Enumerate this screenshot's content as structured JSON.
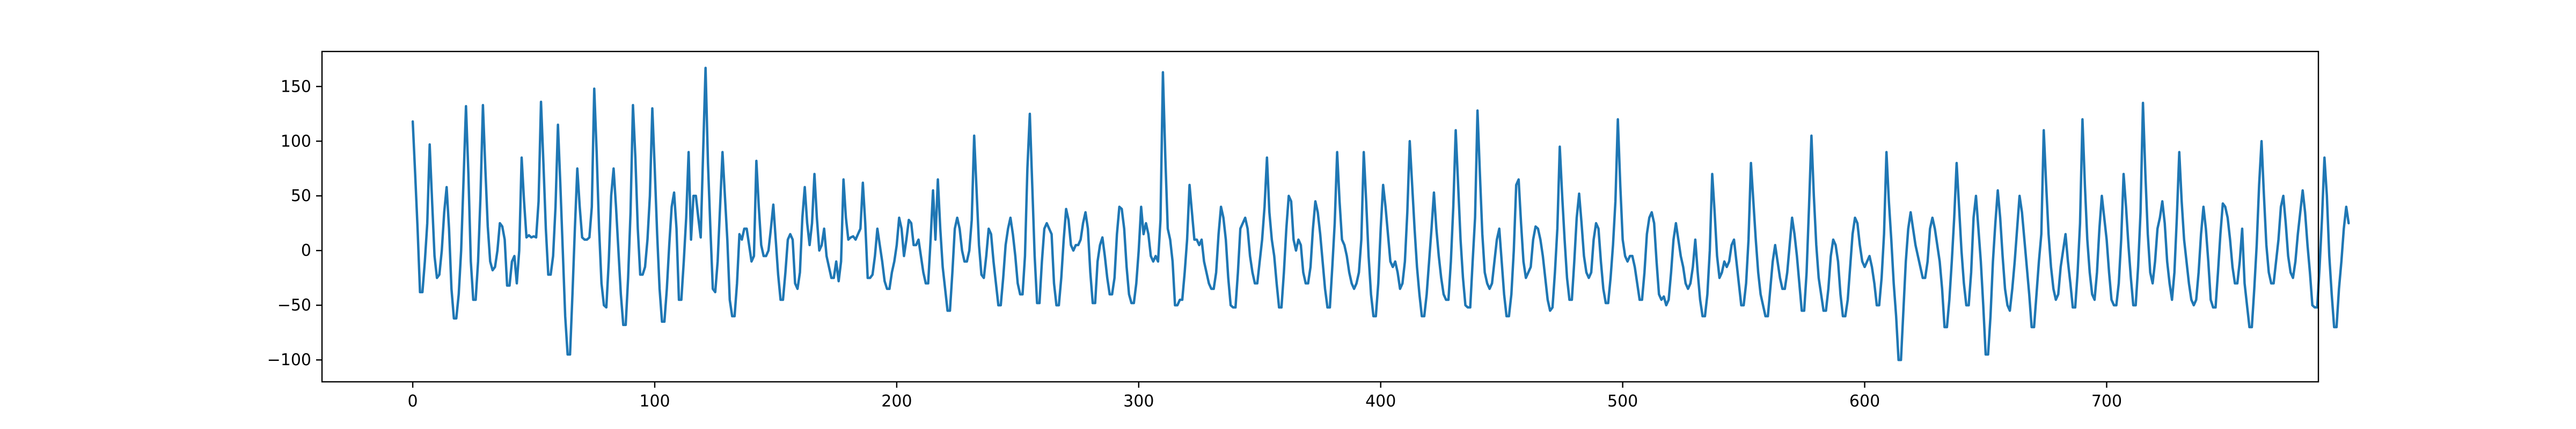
{
  "chart_data": {
    "type": "line",
    "title": "",
    "xlabel": "",
    "ylabel": "",
    "xlim": [
      -37.5,
      787.5
    ],
    "ylim": [
      -120,
      182
    ],
    "x_ticks": [
      0,
      100,
      200,
      300,
      400,
      500,
      600,
      700
    ],
    "x_tick_labels": [
      "0",
      "100",
      "200",
      "300",
      "400",
      "500",
      "600",
      "700"
    ],
    "y_ticks": [
      -100,
      -50,
      0,
      50,
      100,
      150
    ],
    "y_tick_labels": [
      "−100",
      "−50",
      "0",
      "50",
      "100",
      "150"
    ],
    "grid": false,
    "legend": "none",
    "line_color": "#1f77b4",
    "series": [
      {
        "x_start": 0,
        "x_step": 1,
        "values": [
          118,
          70,
          20,
          -38,
          -38,
          -10,
          25,
          97,
          45,
          -5,
          -25,
          -22,
          0,
          35,
          58,
          20,
          -35,
          -62,
          -62,
          -40,
          0,
          65,
          132,
          70,
          -10,
          -45,
          -45,
          -10,
          50,
          133,
          75,
          22,
          -10,
          -18,
          -15,
          0,
          25,
          22,
          10,
          -32,
          -32,
          -10,
          -5,
          -30,
          0,
          85,
          45,
          12,
          14,
          12,
          13,
          12,
          45,
          136,
          80,
          20,
          -22,
          -22,
          -5,
          40,
          115,
          60,
          0,
          -60,
          -95,
          -95,
          -40,
          20,
          75,
          40,
          12,
          10,
          10,
          12,
          40,
          148,
          90,
          20,
          -30,
          -50,
          -52,
          -10,
          50,
          75,
          40,
          0,
          -40,
          -68,
          -68,
          -25,
          35,
          133,
          85,
          20,
          -22,
          -22,
          -15,
          10,
          50,
          130,
          75,
          15,
          -35,
          -65,
          -65,
          -35,
          5,
          40,
          53,
          20,
          -45,
          -45,
          -10,
          30,
          90,
          10,
          50,
          50,
          30,
          12,
          90,
          167,
          80,
          20,
          -35,
          -38,
          -10,
          40,
          90,
          50,
          10,
          -45,
          -60,
          -60,
          -30,
          15,
          10,
          20,
          20,
          5,
          -10,
          -5,
          82,
          40,
          5,
          -5,
          -5,
          0,
          20,
          42,
          10,
          -22,
          -45,
          -45,
          -20,
          10,
          15,
          10,
          -30,
          -35,
          -20,
          30,
          58,
          25,
          5,
          25,
          70,
          30,
          0,
          5,
          20,
          -5,
          -15,
          -25,
          -25,
          -10,
          -28,
          -10,
          65,
          30,
          10,
          12,
          13,
          10,
          15,
          20,
          62,
          25,
          -25,
          -25,
          -22,
          -5,
          20,
          5,
          -10,
          -28,
          -35,
          -35,
          -20,
          -10,
          5,
          30,
          20,
          -5,
          10,
          28,
          25,
          5,
          5,
          10,
          -5,
          -20,
          -30,
          -30,
          10,
          55,
          10,
          65,
          20,
          -15,
          -35,
          -55,
          -55,
          -20,
          20,
          30,
          20,
          0,
          -10,
          -10,
          0,
          28,
          105,
          55,
          5,
          -22,
          -25,
          -5,
          20,
          15,
          -10,
          -30,
          -50,
          -50,
          -25,
          5,
          20,
          30,
          15,
          -5,
          -30,
          -40,
          -40,
          -5,
          75,
          125,
          60,
          -5,
          -48,
          -48,
          -10,
          20,
          25,
          20,
          15,
          -30,
          -50,
          -50,
          -25,
          10,
          38,
          28,
          5,
          0,
          5,
          5,
          10,
          25,
          35,
          20,
          -20,
          -48,
          -48,
          -10,
          5,
          12,
          -5,
          -25,
          -40,
          -40,
          -25,
          15,
          40,
          38,
          20,
          -15,
          -40,
          -48,
          -48,
          -30,
          0,
          40,
          15,
          25,
          15,
          -5,
          -10,
          -5,
          -10,
          28,
          163,
          85,
          20,
          10,
          -10,
          -50,
          -50,
          -45,
          -45,
          -20,
          10,
          60,
          35,
          10,
          10,
          5,
          10,
          -10,
          -20,
          -30,
          -35,
          -35,
          -20,
          15,
          40,
          30,
          10,
          -25,
          -50,
          -52,
          -52,
          -20,
          20,
          25,
          30,
          20,
          -5,
          -20,
          -30,
          -30,
          -10,
          10,
          40,
          85,
          35,
          10,
          -5,
          -30,
          -52,
          -52,
          -20,
          20,
          50,
          45,
          10,
          0,
          10,
          5,
          -20,
          -30,
          -30,
          -15,
          20,
          45,
          35,
          15,
          -10,
          -35,
          -52,
          -52,
          -15,
          25,
          90,
          45,
          10,
          5,
          -5,
          -20,
          -30,
          -35,
          -30,
          -20,
          10,
          90,
          45,
          -5,
          -40,
          -60,
          -60,
          -30,
          20,
          60,
          40,
          15,
          -10,
          -15,
          -10,
          -20,
          -35,
          -30,
          -10,
          35,
          100,
          60,
          20,
          -15,
          -40,
          -60,
          -60,
          -40,
          -10,
          20,
          53,
          20,
          -5,
          -25,
          -40,
          -45,
          -45,
          -10,
          40,
          110,
          60,
          10,
          -25,
          -50,
          -52,
          -52,
          -10,
          30,
          128,
          70,
          15,
          -20,
          -30,
          -35,
          -30,
          -10,
          10,
          20,
          -10,
          -40,
          -60,
          -60,
          -40,
          0,
          60,
          65,
          25,
          -10,
          -25,
          -20,
          -15,
          10,
          22,
          20,
          10,
          -5,
          -25,
          -45,
          -55,
          -52,
          -20,
          20,
          95,
          50,
          10,
          -25,
          -45,
          -45,
          -10,
          30,
          52,
          25,
          -5,
          -20,
          -25,
          -20,
          10,
          25,
          20,
          -10,
          -35,
          -48,
          -48,
          -25,
          5,
          45,
          120,
          60,
          10,
          -5,
          -10,
          -5,
          -5,
          -15,
          -30,
          -45,
          -45,
          -20,
          15,
          30,
          35,
          25,
          -10,
          -40,
          -45,
          -42,
          -50,
          -45,
          -20,
          10,
          25,
          10,
          -5,
          -15,
          -30,
          -35,
          -30,
          -15,
          10,
          -20,
          -45,
          -60,
          -60,
          -40,
          0,
          70,
          35,
          -5,
          -25,
          -20,
          -10,
          -15,
          -10,
          5,
          10,
          -10,
          -30,
          -50,
          -50,
          -30,
          10,
          80,
          45,
          10,
          -20,
          -40,
          -50,
          -60,
          -60,
          -35,
          -10,
          5,
          -10,
          -25,
          -35,
          -35,
          -20,
          5,
          30,
          15,
          -5,
          -30,
          -55,
          -55,
          -20,
          40,
          105,
          50,
          5,
          -25,
          -40,
          -55,
          -55,
          -35,
          -5,
          10,
          5,
          -10,
          -40,
          -60,
          -60,
          -45,
          -15,
          15,
          30,
          25,
          5,
          -10,
          -15,
          -10,
          -5,
          -15,
          -30,
          -50,
          -50,
          -25,
          15,
          90,
          45,
          10,
          -30,
          -60,
          -100,
          -100,
          -55,
          -10,
          20,
          35,
          20,
          5,
          -5,
          -15,
          -25,
          -25,
          -10,
          20,
          30,
          20,
          5,
          -10,
          -35,
          -70,
          -70,
          -45,
          -10,
          30,
          80,
          40,
          0,
          -30,
          -50,
          -50,
          -20,
          30,
          50,
          20,
          -10,
          -50,
          -95,
          -95,
          -60,
          -10,
          25,
          55,
          30,
          -5,
          -35,
          -50,
          -55,
          -35,
          -10,
          20,
          50,
          35,
          10,
          -15,
          -40,
          -70,
          -70,
          -40,
          -10,
          15,
          110,
          60,
          15,
          -15,
          -35,
          -45,
          -40,
          -15,
          0,
          15,
          -10,
          -30,
          -52,
          -52,
          -20,
          25,
          120,
          60,
          10,
          -20,
          -40,
          -45,
          -20,
          20,
          50,
          30,
          10,
          -20,
          -45,
          -50,
          -50,
          -30,
          10,
          70,
          40,
          5,
          -25,
          -50,
          -50,
          -15,
          35,
          135,
          70,
          15,
          -20,
          -30,
          -10,
          20,
          30,
          45,
          25,
          -10,
          -30,
          -45,
          -20,
          30,
          90,
          45,
          10,
          -10,
          -30,
          -45,
          -50,
          -45,
          -20,
          15,
          40,
          20,
          -10,
          -45,
          -52,
          -52,
          -20,
          15,
          43,
          40,
          30,
          10,
          -15,
          -30,
          -30,
          -10,
          20,
          -30,
          -50,
          -70,
          -70,
          -35,
          5,
          60,
          100,
          50,
          5,
          -20,
          -30,
          -30,
          -10,
          10,
          40,
          50,
          25,
          -5,
          -20,
          -25,
          -10,
          15,
          35,
          55,
          35,
          5,
          -20,
          -50,
          -52,
          -52,
          -15,
          30,
          85,
          50,
          -5,
          -40,
          -70,
          -70,
          -35,
          -10,
          20,
          40,
          25
        ]
      }
    ]
  }
}
